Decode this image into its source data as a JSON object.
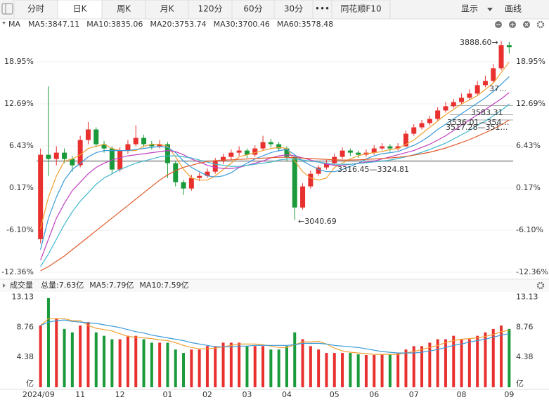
{
  "toolbar": {
    "tabs": [
      "分时",
      "日K",
      "周K",
      "月K",
      "120分",
      "60分",
      "30分",
      "•••",
      "同花顺F10"
    ],
    "right": [
      "显示",
      "画线"
    ]
  },
  "chart_data": [
    {
      "type": "candlestick",
      "title": "MA",
      "open": [
        2950,
        3350,
        3330,
        3360,
        3330,
        3300,
        3420,
        3470,
        3400,
        3380,
        3280,
        3370,
        3400,
        3430,
        3400,
        3390,
        3400,
        3310,
        3220,
        3190,
        3240,
        3250,
        3270,
        3320,
        3340,
        3360,
        3370,
        3350,
        3380,
        3410,
        3400,
        3380,
        3340,
        3100,
        3200,
        3260,
        3290,
        3310,
        3340,
        3370,
        3360,
        3350,
        3360,
        3380,
        3390,
        3380,
        3390,
        3450,
        3480,
        3500,
        3520,
        3560,
        3580,
        3600,
        3620,
        3640,
        3680,
        3700,
        3760,
        3870
      ],
      "close": [
        3350,
        3330,
        3360,
        3330,
        3300,
        3420,
        3470,
        3400,
        3380,
        3280,
        3370,
        3400,
        3430,
        3400,
        3390,
        3400,
        3310,
        3220,
        3190,
        3240,
        3250,
        3270,
        3320,
        3340,
        3360,
        3370,
        3350,
        3380,
        3410,
        3400,
        3380,
        3340,
        3100,
        3200,
        3260,
        3290,
        3310,
        3340,
        3370,
        3360,
        3350,
        3360,
        3380,
        3390,
        3380,
        3390,
        3450,
        3480,
        3500,
        3520,
        3560,
        3580,
        3600,
        3620,
        3640,
        3680,
        3700,
        3760,
        3870,
        3860
      ],
      "high": [
        3380,
        3674,
        3390,
        3380,
        3345,
        3440,
        3505,
        3480,
        3415,
        3390,
        3385,
        3420,
        3490,
        3445,
        3415,
        3420,
        3410,
        3320,
        3230,
        3255,
        3265,
        3285,
        3335,
        3355,
        3375,
        3390,
        3380,
        3395,
        3440,
        3425,
        3410,
        3390,
        3345,
        3215,
        3275,
        3300,
        3325,
        3355,
        3385,
        3380,
        3370,
        3375,
        3395,
        3405,
        3400,
        3405,
        3465,
        3495,
        3515,
        3535,
        3575,
        3600,
        3615,
        3640,
        3660,
        3700,
        3725,
        3780,
        3888.6,
        3885
      ],
      "low": [
        2930,
        3250,
        3300,
        3310,
        3270,
        3290,
        3400,
        3385,
        3360,
        3260,
        3270,
        3355,
        3390,
        3385,
        3375,
        3380,
        3240,
        3200,
        3160,
        3180,
        3225,
        3240,
        3260,
        3305,
        3325,
        3345,
        3335,
        3340,
        3370,
        3385,
        3365,
        3320,
        3040.69,
        3090,
        3190,
        3250,
        3280,
        3300,
        3330,
        3345,
        3335,
        3340,
        3350,
        3370,
        3365,
        3370,
        3385,
        3440,
        3470,
        3490,
        3510,
        3550,
        3570,
        3590,
        3610,
        3630,
        3670,
        3690,
        3750,
        3830
      ],
      "series": [
        {
          "name": "MA5:3847.11",
          "color": "#f0a030",
          "values": [
            3000,
            3150,
            3250,
            3320,
            3330,
            3350,
            3380,
            3390,
            3400,
            3380,
            3370,
            3370,
            3370,
            3390,
            3400,
            3400,
            3390,
            3340,
            3280,
            3240,
            3230,
            3230,
            3250,
            3280,
            3310,
            3340,
            3350,
            3360,
            3370,
            3380,
            3385,
            3380,
            3320,
            3270,
            3240,
            3230,
            3240,
            3290,
            3310,
            3330,
            3345,
            3355,
            3360,
            3365,
            3375,
            3380,
            3400,
            3420,
            3450,
            3480,
            3510,
            3540,
            3565,
            3590,
            3610,
            3630,
            3660,
            3690,
            3740,
            3790
          ]
        },
        {
          "name": "MA10:3835.06",
          "color": "#3a9ad9",
          "values": [
            2900,
            3050,
            3150,
            3230,
            3280,
            3310,
            3340,
            3360,
            3370,
            3370,
            3370,
            3370,
            3375,
            3380,
            3385,
            3390,
            3385,
            3360,
            3320,
            3290,
            3270,
            3250,
            3245,
            3250,
            3265,
            3290,
            3310,
            3330,
            3345,
            3360,
            3370,
            3375,
            3350,
            3320,
            3300,
            3280,
            3270,
            3270,
            3280,
            3295,
            3310,
            3330,
            3345,
            3355,
            3360,
            3365,
            3380,
            3395,
            3415,
            3440,
            3470,
            3495,
            3520,
            3545,
            3570,
            3595,
            3620,
            3650,
            3685,
            3720
          ]
        },
        {
          "name": "MA20:3753.74",
          "color": "#c040c0",
          "values": [
            2850,
            2950,
            3050,
            3120,
            3180,
            3220,
            3260,
            3290,
            3310,
            3325,
            3335,
            3345,
            3350,
            3355,
            3360,
            3365,
            3370,
            3365,
            3350,
            3330,
            3315,
            3300,
            3290,
            3285,
            3285,
            3290,
            3300,
            3310,
            3320,
            3335,
            3345,
            3350,
            3345,
            3335,
            3325,
            3315,
            3305,
            3300,
            3300,
            3305,
            3310,
            3315,
            3320,
            3330,
            3340,
            3350,
            3360,
            3370,
            3385,
            3400,
            3420,
            3440,
            3465,
            3490,
            3515,
            3540,
            3565,
            3590,
            3615,
            3645
          ]
        },
        {
          "name": "MA30:3700.46",
          "color": "#40b8d0",
          "values": [
            2820,
            2880,
            2950,
            3020,
            3080,
            3130,
            3170,
            3210,
            3240,
            3260,
            3280,
            3295,
            3310,
            3320,
            3330,
            3340,
            3345,
            3345,
            3340,
            3335,
            3325,
            3315,
            3305,
            3300,
            3295,
            3295,
            3300,
            3305,
            3310,
            3315,
            3325,
            3330,
            3330,
            3325,
            3320,
            3315,
            3310,
            3305,
            3305,
            3305,
            3308,
            3312,
            3316,
            3320,
            3325,
            3332,
            3340,
            3350,
            3362,
            3375,
            3390,
            3405,
            3425,
            3445,
            3465,
            3490,
            3510,
            3535,
            3560,
            3590
          ]
        },
        {
          "name": "MA60:3578.48",
          "color": "#e05a2a",
          "values": [
            2800,
            2820,
            2845,
            2870,
            2900,
            2930,
            2960,
            2990,
            3020,
            3050,
            3080,
            3110,
            3140,
            3170,
            3200,
            3230,
            3255,
            3275,
            3290,
            3300,
            3310,
            3318,
            3322,
            3325,
            3326,
            3328,
            3330,
            3332,
            3334,
            3336,
            3338,
            3338,
            3336,
            3334,
            3332,
            3330,
            3328,
            3326,
            3325,
            3325,
            3326,
            3328,
            3330,
            3332,
            3335,
            3338,
            3342,
            3348,
            3355,
            3362,
            3372,
            3382,
            3395,
            3408,
            3422,
            3438,
            3455,
            3472,
            3492,
            3515
          ]
        }
      ],
      "up_color": "#e8312f",
      "down_color": "#1a9a3a",
      "ylim": [
        2770,
        3934
      ],
      "yticks": [
        {
          "value": 3790.9,
          "label": "18.95%"
        },
        {
          "value": 3591.4,
          "label": "12.69%"
        },
        {
          "value": 3391.9,
          "label": "6.43%"
        },
        {
          "value": 3192.4,
          "label": "0.17%"
        },
        {
          "value": 2992.6,
          "label": "-6.10%"
        },
        {
          "value": 2793.1,
          "label": "-12.36%"
        }
      ],
      "hlines": [
        3320,
        3583,
        3540,
        3515
      ],
      "annotations": [
        "3888.60→",
        "37…",
        "3583.31",
        "3536.01—354…",
        "3517.28—351…",
        "3316.45—3324.81",
        "←3040.69"
      ]
    },
    {
      "type": "bar",
      "title": "成交量",
      "categories": [
        "2024/09",
        null,
        null,
        null,
        null,
        "11",
        null,
        null,
        null,
        null,
        "12",
        null,
        null,
        null,
        null,
        null,
        "01",
        null,
        null,
        null,
        null,
        "02",
        null,
        null,
        null,
        null,
        "03",
        null,
        null,
        null,
        null,
        "04",
        null,
        null,
        null,
        null,
        null,
        "05",
        null,
        null,
        null,
        null,
        "06",
        null,
        null,
        null,
        null,
        "07",
        null,
        null,
        null,
        null,
        null,
        "08",
        null,
        null,
        null,
        null,
        null,
        "09"
      ],
      "series": [
        {
          "name": "总量:7.63亿",
          "color": "#e8312f",
          "values": [
            9,
            13,
            10,
            8.5,
            8,
            9,
            9.5,
            8,
            7.5,
            7,
            7,
            7.5,
            7.5,
            7,
            6.5,
            6.5,
            6.5,
            5.5,
            5,
            5.5,
            5.5,
            6,
            6,
            6.5,
            6.5,
            6.5,
            6,
            6,
            6,
            5.5,
            5.5,
            6,
            8,
            7,
            6,
            5.5,
            5,
            5,
            5,
            5,
            4.8,
            4.7,
            4.7,
            4.8,
            4.8,
            5,
            5.5,
            6,
            6,
            6.5,
            7,
            7,
            7.5,
            7,
            7,
            7.5,
            8,
            8.5,
            9,
            8.5
          ]
        },
        {
          "name": "MA5:7.79亿",
          "color": "#f0a030",
          "values": [
            9,
            10,
            10,
            10,
            9.7,
            9.7,
            9,
            8.6,
            8.4,
            8.2,
            7.8,
            7.4,
            7.3,
            7.2,
            7.1,
            6.9,
            6.8,
            6.5,
            6.1,
            5.8,
            5.6,
            5.6,
            5.7,
            5.9,
            6.1,
            6.3,
            6.3,
            6.3,
            6.2,
            6,
            5.8,
            5.8,
            6.2,
            6.6,
            6.6,
            6.7,
            6.3,
            5.7,
            5.3,
            5.1,
            5,
            4.9,
            4.8,
            4.8,
            4.8,
            4.8,
            5,
            5.2,
            5.5,
            5.8,
            6.1,
            6.5,
            6.8,
            7,
            7.1,
            7.2,
            7.4,
            7.7,
            8.1,
            8.3
          ]
        },
        {
          "name": "MA10:7.59亿",
          "color": "#3a9ad9",
          "values": [
            9,
            9.5,
            9.7,
            9.8,
            9.6,
            9.5,
            9.4,
            9.3,
            9.1,
            8.9,
            8.7,
            8.4,
            8.1,
            7.9,
            7.6,
            7.4,
            7.2,
            7,
            6.8,
            6.5,
            6.3,
            6.1,
            5.9,
            5.9,
            5.9,
            6,
            6,
            6.1,
            6.1,
            6.1,
            6.1,
            6.1,
            6.2,
            6.4,
            6.4,
            6.4,
            6.3,
            6.1,
            6,
            5.9,
            5.8,
            5.6,
            5.4,
            5.2,
            5.1,
            5,
            5,
            5,
            5.1,
            5.3,
            5.5,
            5.8,
            6.1,
            6.3,
            6.6,
            6.8,
            7,
            7.3,
            7.6,
            7.8
          ]
        }
      ],
      "ylim": [
        0,
        13.7
      ],
      "yticks": [
        13.13,
        8.76,
        4.38,
        {
          "value": 0,
          "label": "亿"
        }
      ]
    }
  ]
}
